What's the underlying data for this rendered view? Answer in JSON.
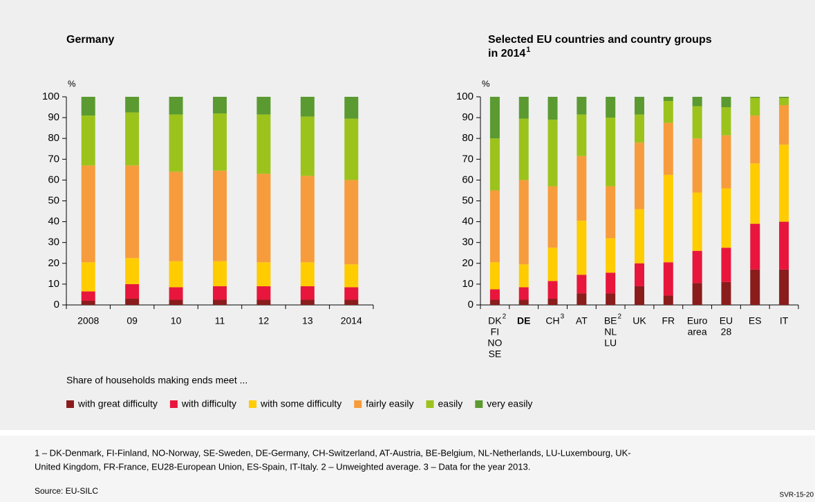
{
  "chart_data": [
    {
      "type": "stacked_bar",
      "title": [
        "Germany"
      ],
      "y_unit": "%",
      "categories": [
        "2008",
        "09",
        "10",
        "11",
        "12",
        "13",
        "2014"
      ],
      "ylim": [
        0,
        100
      ],
      "yticks": [
        0,
        10,
        20,
        30,
        40,
        50,
        60,
        70,
        80,
        90,
        100
      ],
      "series": [
        {
          "values": [
            2,
            3,
            2.5,
            2.5,
            2.5,
            2.5,
            2.5
          ]
        },
        {
          "values": [
            4.5,
            7,
            6,
            6.5,
            6.5,
            6.5,
            6
          ]
        },
        {
          "values": [
            14,
            12.5,
            12.5,
            12,
            11.5,
            11.5,
            11
          ]
        },
        {
          "values": [
            46.5,
            44.5,
            43,
            43.5,
            42.5,
            41.5,
            40.5
          ]
        },
        {
          "values": [
            24,
            25.5,
            27.5,
            27.5,
            28.5,
            28.5,
            29.5
          ]
        },
        {
          "values": [
            9,
            7.5,
            8.5,
            8,
            8.5,
            9.5,
            10.5
          ]
        }
      ]
    },
    {
      "type": "stacked_bar",
      "title": [
        "Selected EU countries and country groups",
        "in 2014"
      ],
      "title_note": "1",
      "y_unit": "%",
      "categories": [
        [
          "DK",
          "FI",
          "NO",
          "SE"
        ],
        [
          "DE"
        ],
        [
          "CH"
        ],
        [
          "AT"
        ],
        [
          "BE",
          "NL",
          "LU"
        ],
        [
          "UK"
        ],
        [
          "FR"
        ],
        [
          "Euro",
          "area"
        ],
        [
          "EU",
          "28"
        ],
        [
          "ES"
        ],
        [
          "IT"
        ]
      ],
      "category_notes": [
        "2",
        null,
        "3",
        null,
        "2",
        null,
        null,
        null,
        null,
        null,
        null
      ],
      "highlight": "DE",
      "ylim": [
        0,
        100
      ],
      "yticks": [
        0,
        10,
        20,
        30,
        40,
        50,
        60,
        70,
        80,
        90,
        100
      ],
      "series": [
        {
          "values": [
            2.5,
            2.5,
            3,
            5.5,
            5.5,
            9,
            4.5,
            10.5,
            11,
            17,
            17
          ]
        },
        {
          "values": [
            5,
            6,
            8.5,
            9,
            10,
            11,
            16,
            15.5,
            16.5,
            22,
            23
          ]
        },
        {
          "values": [
            13,
            11,
            16,
            26,
            16.5,
            26,
            42,
            28,
            28.5,
            29,
            37
          ]
        },
        {
          "values": [
            34.5,
            40.5,
            29.5,
            31,
            25,
            32,
            25,
            26,
            25.5,
            23,
            19
          ]
        },
        {
          "values": [
            25,
            29.5,
            32,
            20,
            33,
            13.5,
            10.5,
            15.5,
            13.5,
            8.5,
            3.5
          ]
        },
        {
          "values": [
            20,
            10.5,
            11,
            8.5,
            10,
            8.5,
            2,
            4.5,
            5,
            0.5,
            0.5
          ]
        }
      ]
    }
  ],
  "legend": {
    "title": "Share of households making ends meet ...",
    "items": [
      {
        "name": "with great difficulty",
        "color": "#8b1c1c"
      },
      {
        "name": "with difficulty",
        "color": "#e8163c"
      },
      {
        "name": "with some difficulty",
        "color": "#ffcc00"
      },
      {
        "name": "fairly easily",
        "color": "#f79c3c"
      },
      {
        "name": "easily",
        "color": "#9cc31c"
      },
      {
        "name": "very easily",
        "color": "#5b9a30"
      }
    ]
  },
  "notes": [
    "1 – DK-Denmark, FI-Finland, NO-Norway, SE-Sweden, DE-Germany, CH-Switzerland, AT-Austria, BE-Belgium, NL-Netherlands, LU-Luxembourg, UK-",
    "United Kingdom, FR-France, EU28-European Union, ES-Spain, IT-Italy.  2 – Unweighted average.  3 – Data for the year 2013."
  ],
  "source": "Source: EU-SILC",
  "code": "SVR-15-20"
}
